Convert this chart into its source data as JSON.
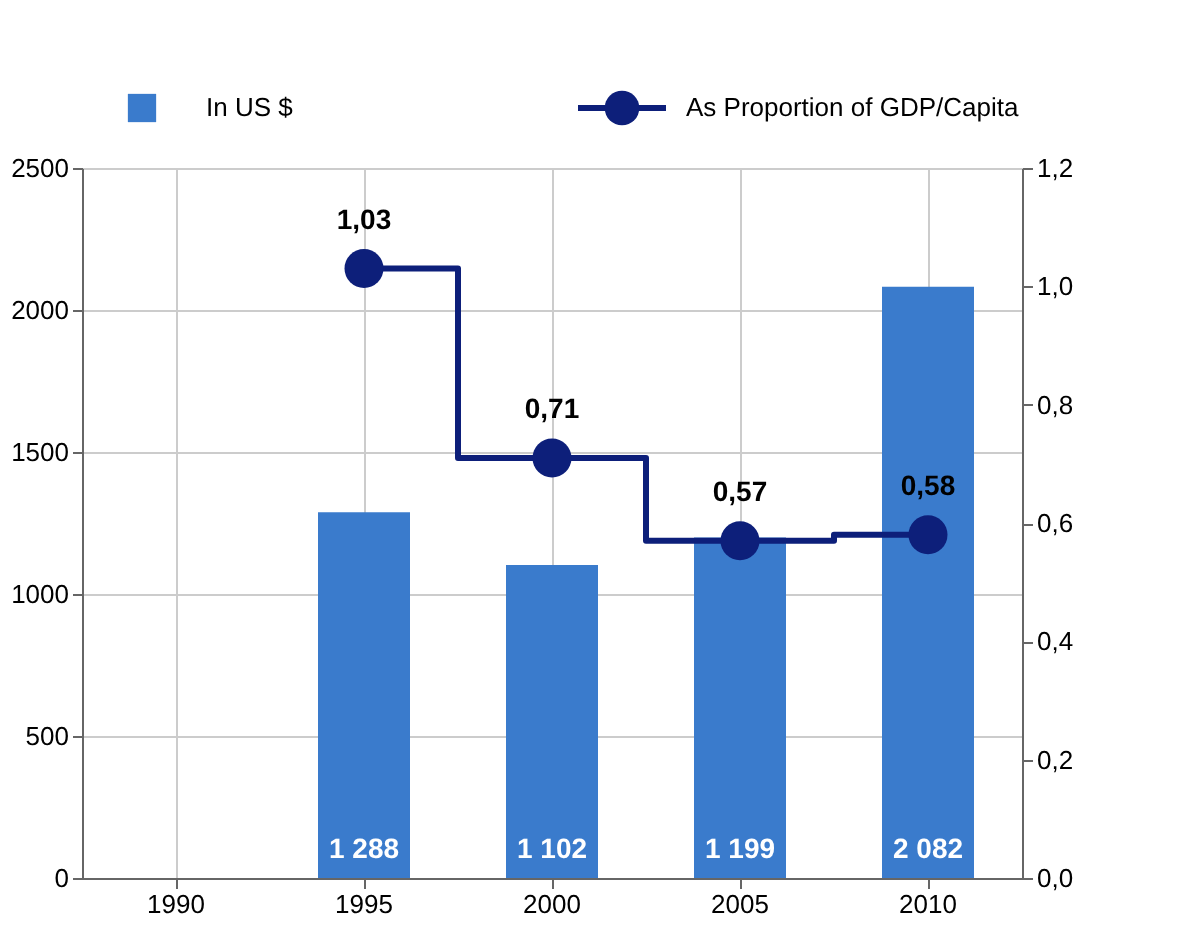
{
  "chart_data": {
    "type": "bar",
    "categories": [
      "1990",
      "1995",
      "2000",
      "2005",
      "2010"
    ],
    "series": [
      {
        "name": "In US $",
        "color": "#3a7bcc",
        "values": [
          null,
          1288,
          1102,
          1199,
          2082
        ],
        "value_labels": [
          null,
          "1 288",
          "1 102",
          "1 199",
          "2 082"
        ]
      },
      {
        "name": "As Proportion of GDP/Capita",
        "type": "step",
        "axis": "y2",
        "color": "#0d1f7a",
        "values": [
          null,
          1.03,
          0.71,
          0.57,
          0.58
        ],
        "value_labels": [
          null,
          "1,03",
          "0,71",
          "0,57",
          "0,58"
        ],
        "marker": "circle"
      }
    ],
    "ylim": [
      0,
      2500
    ],
    "yticks": [
      0,
      500,
      1000,
      1500,
      2000,
      2500
    ],
    "y2lim": [
      0,
      1.2
    ],
    "y2ticks": [
      {
        "value": 0,
        "label": "0,0"
      },
      {
        "value": 0.2,
        "label": "0,2"
      },
      {
        "value": 0.4,
        "label": "0,4"
      },
      {
        "value": 0.6,
        "label": "0,6"
      },
      {
        "value": 0.8,
        "label": "0,8"
      },
      {
        "value": 1.0,
        "label": "1,0"
      },
      {
        "value": 1.2,
        "label": "1,2"
      }
    ],
    "grid": true,
    "legend": "top"
  }
}
